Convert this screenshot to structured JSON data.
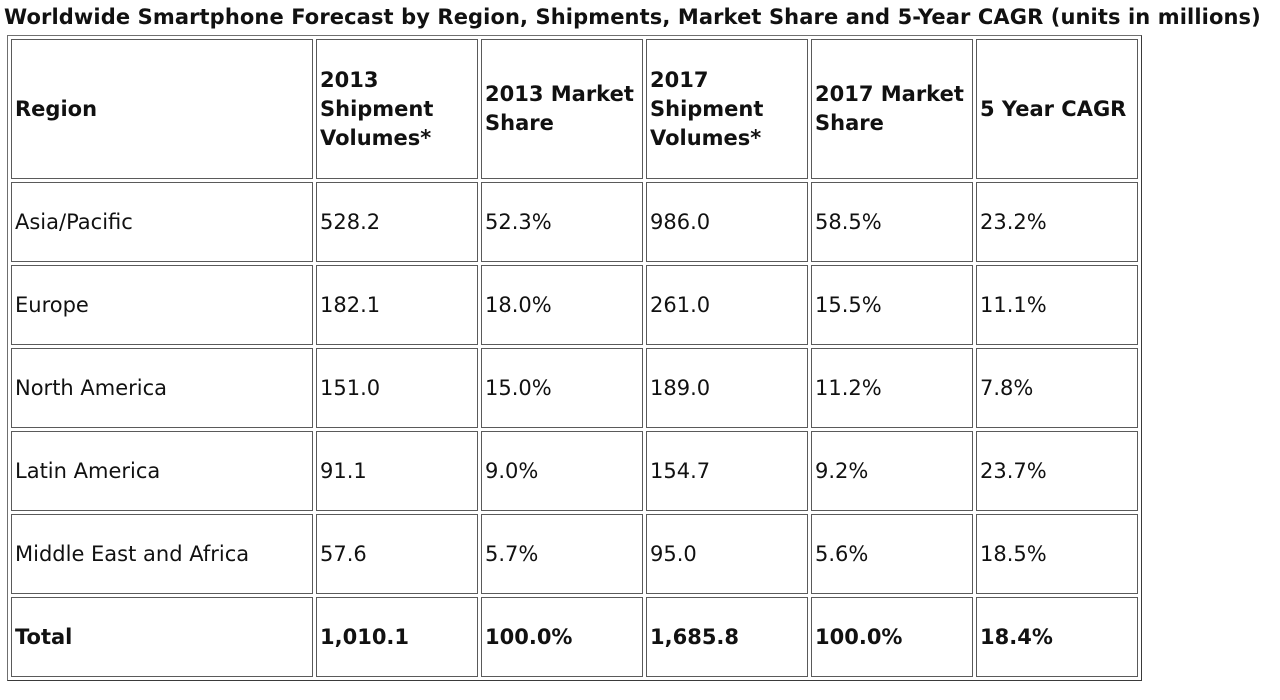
{
  "title": "Worldwide Smartphone Forecast by Region, Shipments, Market Share and 5-Year CAGR (units in millions)",
  "headers": {
    "region": "Region",
    "shipments_2013": "2013 Shipment Volumes*",
    "share_2013": "2013 Market Share",
    "shipments_2017": "2017 Shipment Volumes*",
    "share_2017": "2017 Market Share",
    "cagr": "5 Year CAGR"
  },
  "rows": [
    {
      "region": "Asia/Pacific",
      "shipments_2013": "528.2",
      "share_2013": "52.3%",
      "shipments_2017": "986.0",
      "share_2017": "58.5%",
      "cagr": "23.2%"
    },
    {
      "region": "Europe",
      "shipments_2013": "182.1",
      "share_2013": "18.0%",
      "shipments_2017": "261.0",
      "share_2017": "15.5%",
      "cagr": "11.1%"
    },
    {
      "region": "North America",
      "shipments_2013": "151.0",
      "share_2013": "15.0%",
      "shipments_2017": "189.0",
      "share_2017": "11.2%",
      "cagr": "7.8%"
    },
    {
      "region": "Latin America",
      "shipments_2013": "91.1",
      "share_2013": "9.0%",
      "shipments_2017": "154.7",
      "share_2017": "9.2%",
      "cagr": "23.7%"
    },
    {
      "region": "Middle East and Africa",
      "shipments_2013": "57.6",
      "share_2013": "5.7%",
      "shipments_2017": "95.0",
      "share_2017": "5.6%",
      "cagr": "18.5%"
    }
  ],
  "total": {
    "region": "Total",
    "shipments_2013": "1,010.1",
    "share_2013": "100.0%",
    "shipments_2017": "1,685.8",
    "share_2017": "100.0%",
    "cagr": "18.4%"
  }
}
